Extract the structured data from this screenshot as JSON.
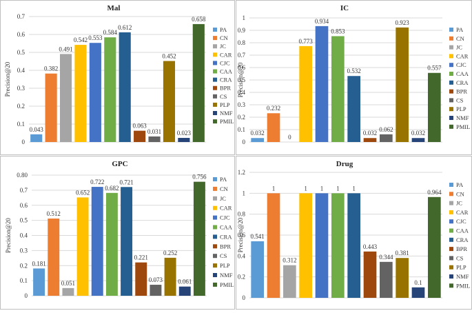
{
  "colors": {
    "PA": "#5b9bd5",
    "CN": "#ed7d31",
    "JC": "#a5a5a5",
    "CAR": "#ffc000",
    "CJC": "#4472c4",
    "CAA": "#70ad47",
    "CRA": "#255e91",
    "BPR": "#9e480e",
    "CS": "#636363",
    "PLP": "#997300",
    "NMF": "#264478",
    "PMIL": "#43682b"
  },
  "chart_data": [
    {
      "type": "bar",
      "title": "Mal",
      "xlabel": "",
      "ylabel": "Precision@20",
      "ylim": [
        0,
        0.7
      ],
      "yticks": [
        "0",
        "0.1",
        "0.2",
        "0.3",
        "0.4",
        "0.5",
        "0.6",
        "0.7"
      ],
      "ytick_values": [
        0,
        0.1,
        0.2,
        0.3,
        0.4,
        0.5,
        0.6,
        0.7
      ],
      "legend_position": "right",
      "categories": [
        "PA",
        "CN",
        "JC",
        "CAR",
        "CJC",
        "CAA",
        "CRA",
        "BPR",
        "CS",
        "PLP",
        "NMF",
        "PMIL"
      ],
      "values": [
        0.043,
        0.382,
        0.491,
        0.542,
        0.553,
        0.584,
        0.612,
        0.063,
        0.031,
        0.452,
        0.023,
        0.658
      ],
      "labels": [
        "0.043",
        "0.382",
        "0.491",
        "0.542",
        "0.553",
        "0.584",
        "0.612",
        "0.063",
        "0.031",
        "0.452",
        "0.023",
        "0.658"
      ]
    },
    {
      "type": "bar",
      "title": "IC",
      "xlabel": "",
      "ylabel": "Precision@20",
      "ylim": [
        0,
        1
      ],
      "yticks": [
        "0",
        "0.1",
        "0.2",
        "0.3",
        "0.4",
        "0.5",
        "0.6",
        "0.7",
        "0.8",
        "0.9",
        "1"
      ],
      "ytick_values": [
        0,
        0.1,
        0.2,
        0.3,
        0.4,
        0.5,
        0.6,
        0.7,
        0.8,
        0.9,
        1
      ],
      "legend_position": "right",
      "categories": [
        "PA",
        "CN",
        "JC",
        "CAR",
        "CJC",
        "CAA",
        "CRA",
        "BPR",
        "CS",
        "PLP",
        "NMF",
        "PMIL"
      ],
      "values": [
        0.032,
        0.232,
        0,
        0.773,
        0.934,
        0.853,
        0.532,
        0.032,
        0.062,
        0.923,
        0.032,
        0.557
      ],
      "labels": [
        "0.032",
        "0.232",
        "0",
        "0.773",
        "0.934",
        "0.853",
        "0.532",
        "0.032",
        "0.062",
        "0.923",
        "0.032",
        "0.557"
      ]
    },
    {
      "type": "bar",
      "title": "GPC",
      "xlabel": "",
      "ylabel": "Precision@20",
      "ylim": [
        0,
        0.8
      ],
      "yticks": [
        "0",
        "0.1",
        "0.2",
        "0.3",
        "0.4",
        "0.5",
        "0.6",
        "0.7",
        "0.80"
      ],
      "ytick_values": [
        0,
        0.1,
        0.2,
        0.3,
        0.4,
        0.5,
        0.6,
        0.7,
        0.8
      ],
      "legend_position": "right",
      "categories": [
        "PA",
        "CN",
        "JC",
        "CAR",
        "CJC",
        "CAA",
        "CRA",
        "BPR",
        "CS",
        "PLP",
        "NMF",
        "PMIL"
      ],
      "values": [
        0.181,
        0.512,
        0.051,
        0.652,
        0.722,
        0.682,
        0.721,
        0.221,
        0.073,
        0.252,
        0.061,
        0.756
      ],
      "labels": [
        "0.181",
        "0.512",
        "0.051",
        "0.652",
        "0.722",
        "0.682",
        "0.721",
        "0.221",
        "0.073",
        "0.252",
        "0.061",
        "0.756"
      ]
    },
    {
      "type": "bar",
      "title": "Drug",
      "xlabel": "",
      "ylabel": "Precision@20",
      "ylim": [
        0,
        1.2
      ],
      "yticks": [
        "0",
        "0.2",
        "0.4",
        "0.6",
        "0.8",
        "1",
        "1.2"
      ],
      "ytick_values": [
        0,
        0.2,
        0.4,
        0.6,
        0.8,
        1,
        1.2
      ],
      "legend_position": "right",
      "categories": [
        "PA",
        "CN",
        "JC",
        "CAR",
        "CJC",
        "CAA",
        "CRA",
        "BPR",
        "CS",
        "PLP",
        "NMF",
        "PMIL"
      ],
      "values": [
        0.541,
        1,
        0.312,
        1,
        1,
        1,
        1,
        0.443,
        0.344,
        0.381,
        0.1,
        0.964
      ],
      "labels": [
        "0.541",
        "1",
        "0.312",
        "1",
        "1",
        "1",
        "1",
        "0.443",
        "0.344",
        "0.381",
        "0.1",
        "0.964"
      ]
    }
  ]
}
